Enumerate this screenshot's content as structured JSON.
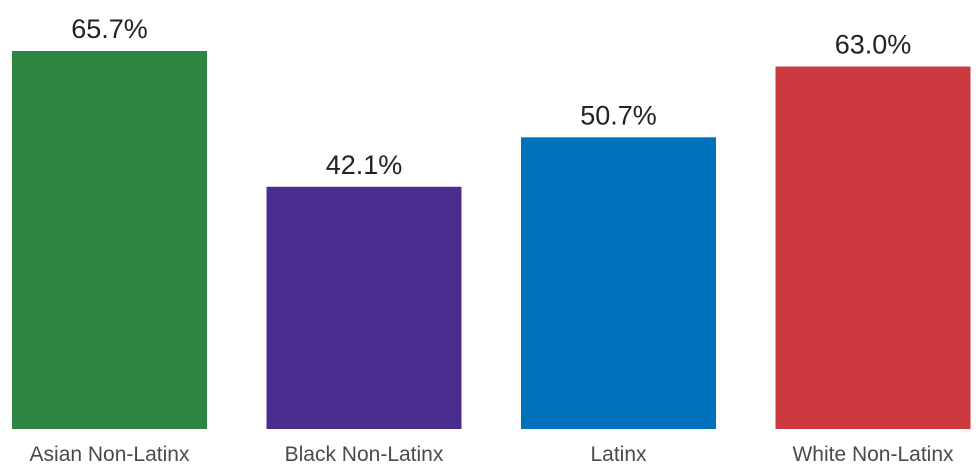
{
  "chart_data": {
    "type": "bar",
    "categories": [
      "Asian Non-Latinx",
      "Black Non-Latinx",
      "Latinx",
      "White Non-Latinx"
    ],
    "values": [
      65.7,
      42.1,
      50.7,
      63.0
    ],
    "value_labels": [
      "65.7%",
      "42.1%",
      "50.7%",
      "63.0%"
    ],
    "colors": [
      "#2e8540",
      "#4b2c8f",
      "#0072bb",
      "#cc3a3f"
    ],
    "ylim": [
      0,
      65.7
    ],
    "grid": false,
    "legend": "none"
  }
}
